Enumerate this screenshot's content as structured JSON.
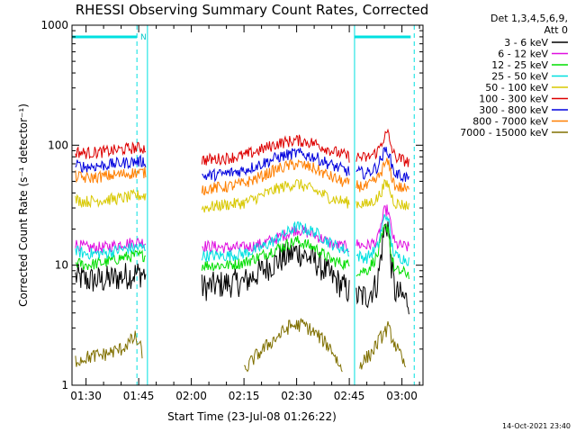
{
  "chart_data": {
    "type": "line",
    "title": "RHESSI Observing Summary Count Rates, Corrected",
    "xlabel": "Start Time (23-Jul-08 01:26:22)",
    "ylabel": "Corrected Count Rate (s⁻¹ detector⁻¹)",
    "yscale": "log",
    "ylim": [
      1,
      1000
    ],
    "xlim_minutes": [
      -4,
      96
    ],
    "x_ticks": [
      {
        "label": "01:30",
        "minute": 0
      },
      {
        "label": "01:45",
        "minute": 15
      },
      {
        "label": "02:00",
        "minute": 30
      },
      {
        "label": "02:15",
        "minute": 45
      },
      {
        "label": "02:30",
        "minute": 60
      },
      {
        "label": "02:45",
        "minute": 75
      },
      {
        "label": "03:00",
        "minute": 90
      }
    ],
    "y_ticks": [
      {
        "label": "1",
        "value": 1
      },
      {
        "label": "10",
        "value": 10
      },
      {
        "label": "100",
        "value": 100
      },
      {
        "label": "1000",
        "value": 1000
      }
    ],
    "legend_header": [
      "Det 1,3,4,5,6,9,",
      "Att 0"
    ],
    "legend_placement": "right",
    "annotations": [
      {
        "text": "N",
        "minute": 15.5
      }
    ],
    "night_bars": [
      [
        -4,
        14.5
      ],
      [
        76.5,
        92.5
      ]
    ],
    "saa_lines_solid": [
      -4,
      17.5,
      76.5
    ],
    "saa_lines_dashed": [
      14.5,
      93.5
    ],
    "timestamp": "14-Oct-2021 23:40",
    "series": [
      {
        "name": "3 - 6 keV",
        "color": "#000000",
        "segments": [
          {
            "x": [
              -3,
              0,
              5,
              10,
              14,
              17
            ],
            "y": [
              8,
              7.5,
              7.5,
              8,
              8.5,
              8.5
            ]
          },
          {
            "x": [
              33,
              40,
              45,
              50,
              55,
              60,
              65,
              70,
              75
            ],
            "y": [
              6.5,
              7,
              7.2,
              9,
              11,
              13,
              11,
              8,
              6
            ]
          },
          {
            "x": [
              77,
              80,
              83,
              85,
              86,
              87,
              88,
              92
            ],
            "y": [
              5.5,
              5.5,
              7,
              20,
              22,
              10,
              6,
              5
            ]
          }
        ]
      },
      {
        "name": "6 - 12 keV",
        "color": "#e010e0",
        "segments": [
          {
            "x": [
              -3,
              0,
              5,
              10,
              14,
              17
            ],
            "y": [
              15,
              14,
              14,
              15,
              15.5,
              15.5
            ]
          },
          {
            "x": [
              33,
              40,
              45,
              50,
              55,
              60,
              65,
              70,
              75
            ],
            "y": [
              14.5,
              14,
              14,
              15,
              17,
              20,
              18,
              15,
              14
            ]
          },
          {
            "x": [
              77,
              80,
              83,
              85,
              86,
              87,
              88,
              92
            ],
            "y": [
              15,
              14.5,
              16,
              28,
              29,
              20,
              15,
              14
            ]
          }
        ]
      },
      {
        "name": "12 - 25 keV",
        "color": "#00dd00",
        "segments": [
          {
            "x": [
              -3,
              0,
              5,
              10,
              14,
              17
            ],
            "y": [
              10.5,
              10,
              10.5,
              11.5,
              12,
              12
            ]
          },
          {
            "x": [
              33,
              40,
              45,
              50,
              55,
              60,
              65,
              70,
              75
            ],
            "y": [
              10,
              10,
              10.5,
              12,
              14,
              16,
              14,
              11,
              10
            ]
          },
          {
            "x": [
              77,
              80,
              83,
              85,
              86,
              87,
              88,
              92
            ],
            "y": [
              9,
              9,
              12,
              20,
              21,
              12,
              9,
              8.5
            ]
          }
        ]
      },
      {
        "name": "25 - 50 keV",
        "color": "#00e0e0",
        "segments": [
          {
            "x": [
              -3,
              0,
              5,
              10,
              14,
              17
            ],
            "y": [
              13,
              12.5,
              12.5,
              13.5,
              14,
              14
            ]
          },
          {
            "x": [
              33,
              40,
              45,
              50,
              55,
              60,
              65,
              70,
              75
            ],
            "y": [
              12,
              12,
              12.5,
              14,
              17,
              21,
              19,
              15,
              13
            ]
          },
          {
            "x": [
              77,
              80,
              83,
              85,
              86,
              87,
              88,
              92
            ],
            "y": [
              12,
              11.5,
              14,
              25,
              26,
              15,
              12,
              11
            ]
          }
        ]
      },
      {
        "name": "50 - 100 keV",
        "color": "#d8c800",
        "segments": [
          {
            "x": [
              -3,
              0,
              5,
              10,
              14,
              17
            ],
            "y": [
              35,
              34,
              35,
              36,
              38,
              38
            ]
          },
          {
            "x": [
              33,
              40,
              45,
              50,
              55,
              60,
              65,
              70,
              75
            ],
            "y": [
              30,
              32,
              33,
              38,
              44,
              48,
              42,
              36,
              33
            ]
          },
          {
            "x": [
              77,
              80,
              83,
              85,
              86,
              87,
              88,
              92
            ],
            "y": [
              33,
              32,
              36,
              46,
              48,
              38,
              33,
              31
            ]
          }
        ]
      },
      {
        "name": "100 - 300 keV",
        "color": "#dd0000",
        "segments": [
          {
            "x": [
              -3,
              0,
              5,
              10,
              14,
              17
            ],
            "y": [
              88,
              86,
              88,
              92,
              95,
              94
            ]
          },
          {
            "x": [
              33,
              40,
              45,
              50,
              55,
              60,
              65,
              70,
              75
            ],
            "y": [
              75,
              78,
              82,
              92,
              104,
              110,
              104,
              90,
              80
            ]
          },
          {
            "x": [
              77,
              80,
              83,
              85,
              86,
              87,
              88,
              92
            ],
            "y": [
              80,
              78,
              88,
              118,
              125,
              96,
              80,
              72
            ]
          }
        ]
      },
      {
        "name": "300 - 800 keV",
        "color": "#0000dd",
        "segments": [
          {
            "x": [
              -3,
              0,
              5,
              10,
              14,
              17
            ],
            "y": [
              68,
              66,
              68,
              71,
              73,
              73
            ]
          },
          {
            "x": [
              33,
              40,
              45,
              50,
              55,
              60,
              65,
              70,
              75
            ],
            "y": [
              55,
              58,
              62,
              70,
              80,
              86,
              80,
              68,
              60
            ]
          },
          {
            "x": [
              77,
              80,
              83,
              85,
              86,
              87,
              88,
              92
            ],
            "y": [
              60,
              58,
              66,
              88,
              92,
              70,
              58,
              53
            ]
          }
        ]
      },
      {
        "name": "800 - 7000 keV",
        "color": "#ff7f00",
        "segments": [
          {
            "x": [
              -3,
              0,
              5,
              10,
              14,
              17
            ],
            "y": [
              55,
              53,
              55,
              57,
              59,
              59
            ]
          },
          {
            "x": [
              33,
              40,
              45,
              50,
              55,
              60,
              65,
              70,
              75
            ],
            "y": [
              43,
              45,
              48,
              55,
              64,
              70,
              64,
              54,
              47
            ]
          },
          {
            "x": [
              77,
              80,
              83,
              85,
              86,
              87,
              88,
              92
            ],
            "y": [
              46,
              45,
              52,
              68,
              72,
              56,
              46,
              42
            ]
          }
        ]
      },
      {
        "name": "7000 - 15000 keV",
        "color": "#807000",
        "segments": [
          {
            "x": [
              -3,
              0,
              5,
              10,
              14,
              16
            ],
            "y": [
              1.6,
              1.7,
              1.8,
              2.0,
              2.5,
              1.9
            ]
          },
          {
            "x": [
              45,
              48,
              52,
              55,
              58,
              62,
              66,
              70,
              73
            ],
            "y": [
              1.3,
              1.7,
              2.2,
              2.6,
              3.1,
              3.2,
              2.6,
              2.0,
              1.3
            ]
          },
          {
            "x": [
              78,
              81,
              84,
              86,
              88,
              91
            ],
            "y": [
              1.5,
              1.8,
              2.5,
              3.0,
              2.2,
              1.4
            ]
          }
        ]
      }
    ]
  }
}
